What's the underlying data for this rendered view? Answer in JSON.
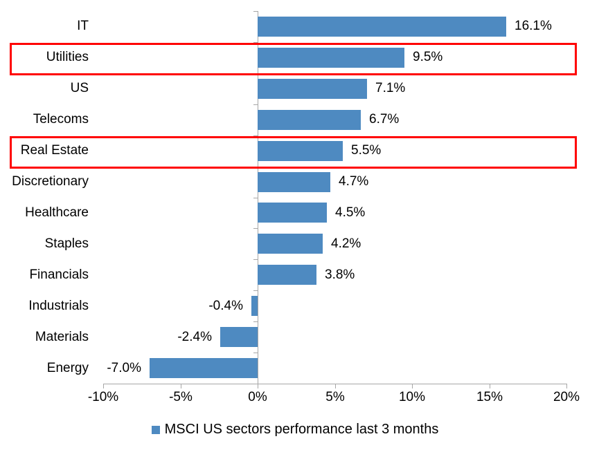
{
  "chart_data": {
    "type": "bar",
    "orientation": "horizontal",
    "title": "",
    "xlabel": "",
    "ylabel": "",
    "categories": [
      "IT",
      "Utilities",
      "US",
      "Telecoms",
      "Real Estate",
      "Discretionary",
      "Healthcare",
      "Staples",
      "Financials",
      "Industrials",
      "Materials",
      "Energy"
    ],
    "values": [
      16.1,
      9.5,
      7.1,
      6.7,
      5.5,
      4.7,
      4.5,
      4.2,
      3.8,
      -0.4,
      -2.4,
      -7.0
    ],
    "value_labels": [
      "16.1%",
      "9.5%",
      "7.1%",
      "6.7%",
      "5.5%",
      "4.7%",
      "4.5%",
      "4.2%",
      "3.8%",
      "-0.4%",
      "-2.4%",
      "-7.0%"
    ],
    "highlighted_categories": [
      "Utilities",
      "Real Estate"
    ],
    "xlim": [
      -10,
      20
    ],
    "x_ticks": [
      {
        "value": -10,
        "label": "-10%"
      },
      {
        "value": -5,
        "label": "-5%"
      },
      {
        "value": 0,
        "label": "0%"
      },
      {
        "value": 5,
        "label": "5%"
      },
      {
        "value": 10,
        "label": "10%"
      },
      {
        "value": 15,
        "label": "15%"
      },
      {
        "value": 20,
        "label": "20%"
      }
    ],
    "grid": false,
    "legend": {
      "position": "bottom",
      "label": "MSCI US sectors performance last 3 months"
    },
    "colors": {
      "bar": "#4e8ac1",
      "highlight_box": "#ff0000",
      "axis": "#a6a6a6",
      "text": "#000000"
    }
  }
}
